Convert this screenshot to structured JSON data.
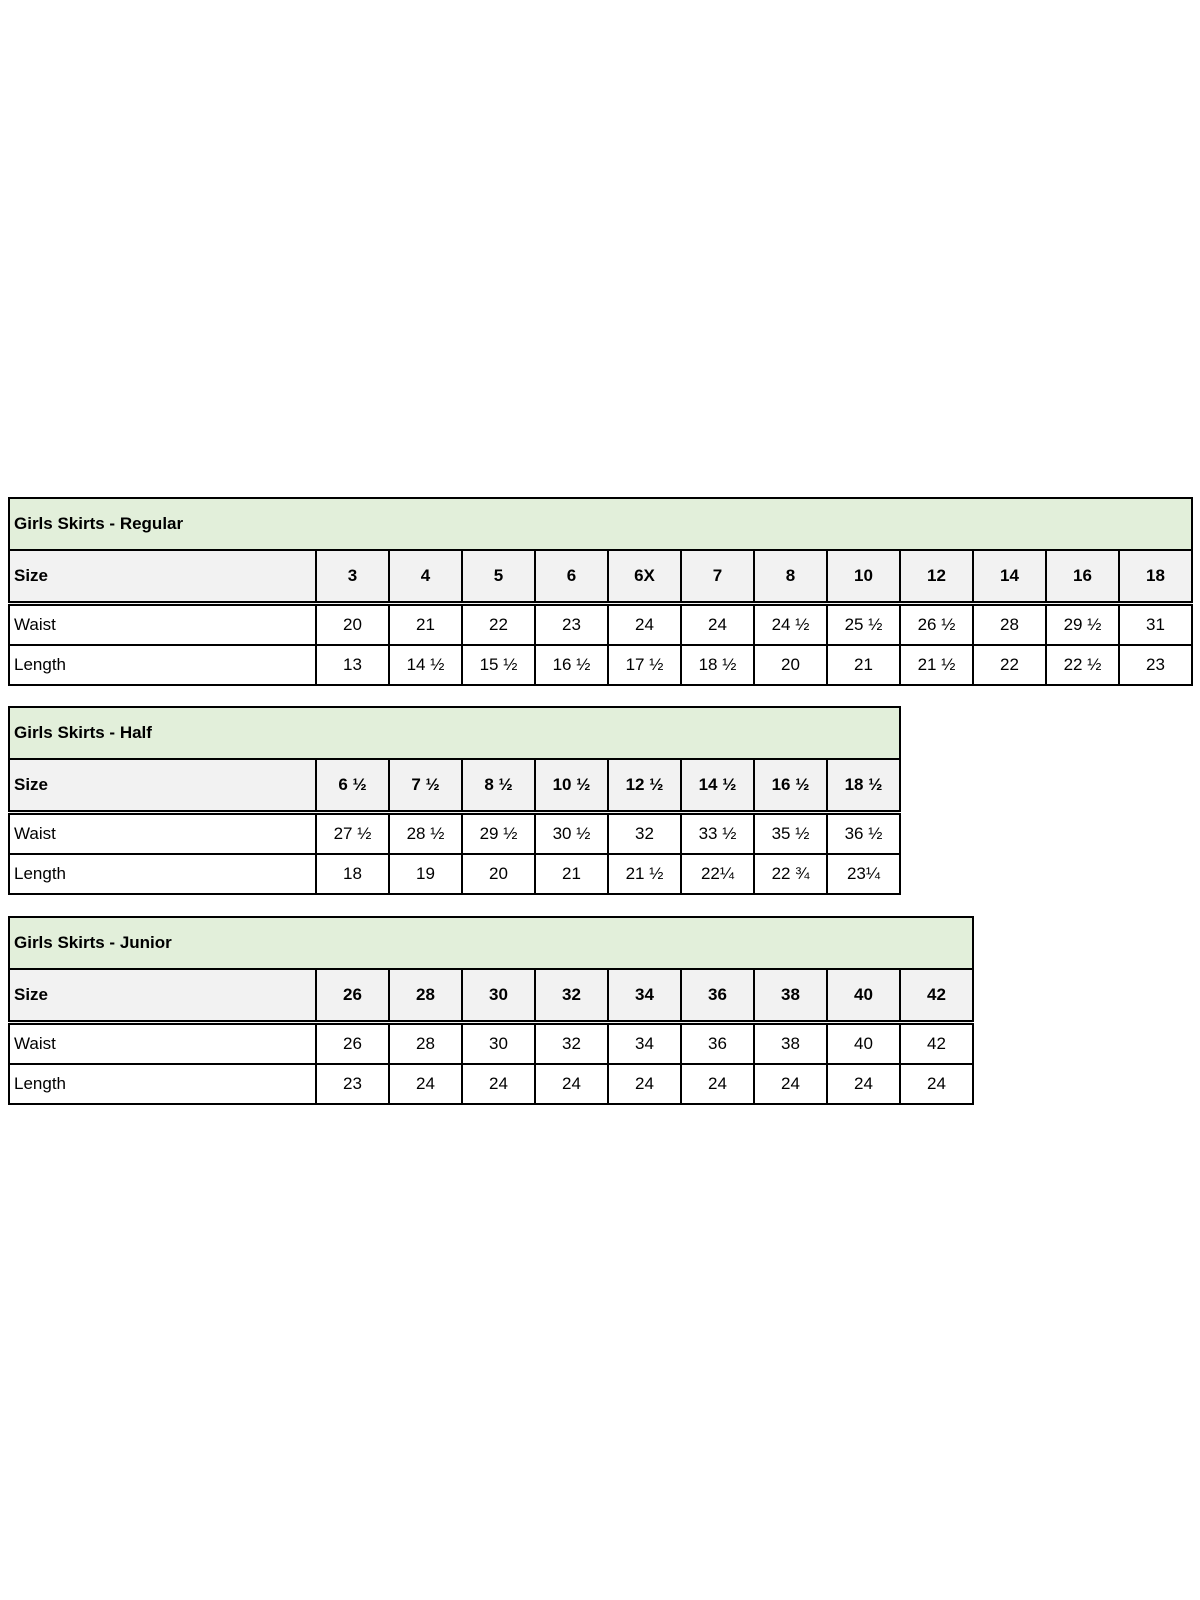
{
  "tables": [
    {
      "title": "Girls Skirts - Regular",
      "size_label": "Size",
      "sizes": [
        "3",
        "4",
        "5",
        "6",
        "6X",
        "7",
        "8",
        "10",
        "12",
        "14",
        "16",
        "18"
      ],
      "rows": [
        {
          "label": "Waist",
          "values": [
            "20",
            "21",
            "22",
            "23",
            "24",
            "24",
            "24 ½",
            "25 ½",
            "26 ½",
            "28",
            "29 ½",
            "31"
          ]
        },
        {
          "label": "Length",
          "values": [
            "13",
            "14 ½",
            "15 ½",
            "16 ½",
            "17 ½",
            "18 ½",
            "20",
            "21",
            "21 ½",
            "22",
            "22 ½",
            "23"
          ]
        }
      ]
    },
    {
      "title": "Girls Skirts - Half",
      "size_label": "Size",
      "sizes": [
        "6 ½",
        "7 ½",
        "8 ½",
        "10 ½",
        "12 ½",
        "14 ½",
        "16 ½",
        "18 ½"
      ],
      "rows": [
        {
          "label": "Waist",
          "values": [
            "27 ½",
            "28 ½",
            "29 ½",
            "30 ½",
            "32",
            "33 ½",
            "35 ½",
            "36 ½"
          ]
        },
        {
          "label": "Length",
          "values": [
            "18",
            "19",
            "20",
            "21",
            "21 ½",
            "22¼",
            "22 ¾",
            "23¼"
          ]
        }
      ]
    },
    {
      "title": "Girls Skirts - Junior",
      "size_label": "Size",
      "sizes": [
        "26",
        "28",
        "30",
        "32",
        "34",
        "36",
        "38",
        "40",
        "42"
      ],
      "rows": [
        {
          "label": "Waist",
          "values": [
            "26",
            "28",
            "30",
            "32",
            "34",
            "36",
            "38",
            "40",
            "42"
          ]
        },
        {
          "label": "Length",
          "values": [
            "23",
            "24",
            "24",
            "24",
            "24",
            "24",
            "24",
            "24",
            "24"
          ]
        }
      ]
    }
  ],
  "colors": {
    "title_bg": "#e2efda",
    "header_bg": "#f2f2f2",
    "border": "#000000"
  }
}
